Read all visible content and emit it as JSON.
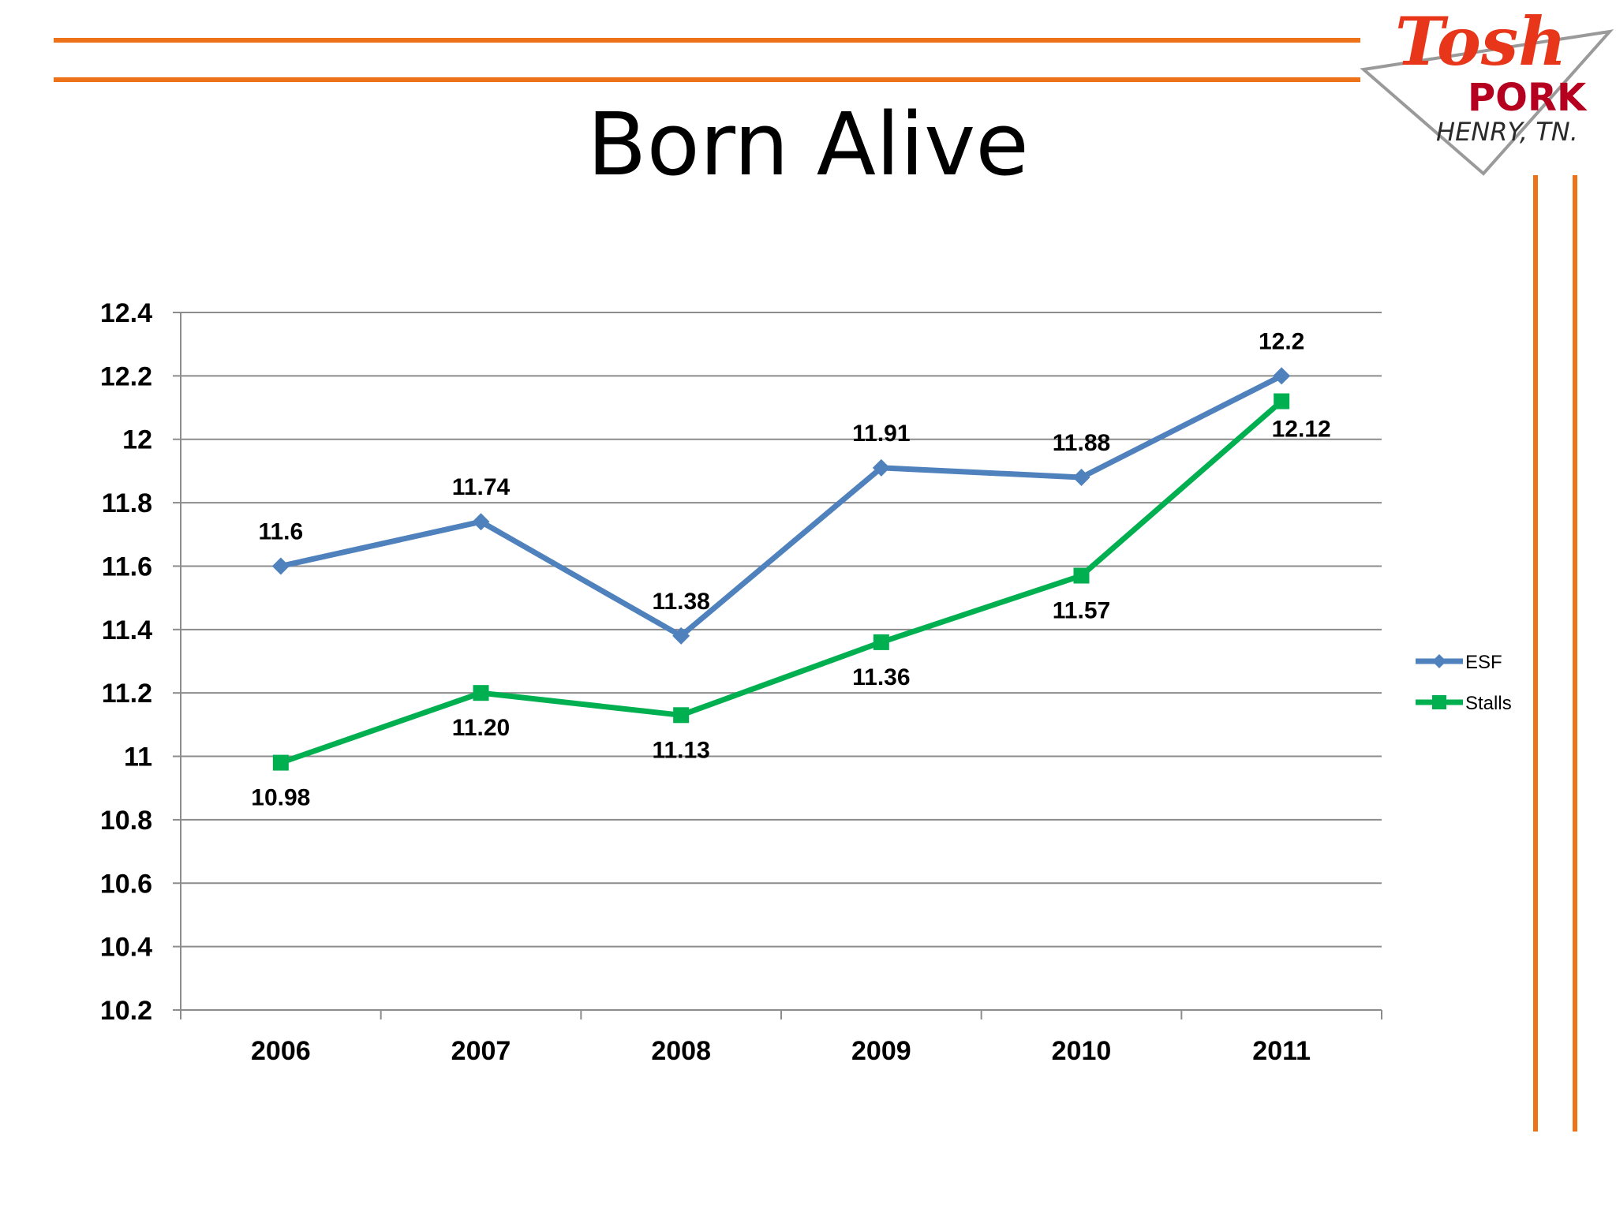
{
  "slide": {
    "title": "Born Alive",
    "accent_color": "#ee7318"
  },
  "logo": {
    "text_top": "Tosh",
    "text_mid": "PORK",
    "text_bottom": "HENRY, TN.",
    "colors": {
      "tosh": "#e8361a",
      "pork": "#b5001f",
      "henry": "#2a2a2a"
    }
  },
  "chart_data": {
    "type": "line",
    "categories": [
      "2006",
      "2007",
      "2008",
      "2009",
      "2010",
      "2011"
    ],
    "series": [
      {
        "name": "ESF",
        "values": [
          11.6,
          11.74,
          11.38,
          11.91,
          11.88,
          12.2
        ],
        "labels": [
          "11.6",
          "11.74",
          "11.38",
          "11.91",
          "11.88",
          "12.2"
        ],
        "color": "#4f81bd",
        "marker": "diamond"
      },
      {
        "name": "Stalls",
        "values": [
          10.98,
          11.2,
          11.13,
          11.36,
          11.57,
          12.12
        ],
        "labels": [
          "10.98",
          "11.20",
          "11.13",
          "11.36",
          "11.57",
          "12.12"
        ],
        "color": "#00b050",
        "marker": "square"
      }
    ],
    "ylim": [
      10.2,
      12.4
    ],
    "yticks": [
      10.2,
      10.4,
      10.6,
      10.8,
      11,
      11.2,
      11.4,
      11.6,
      11.8,
      12,
      12.2,
      12.4
    ],
    "ytick_labels": [
      "10.2",
      "10.4",
      "10.6",
      "10.8",
      "11",
      "11.2",
      "11.4",
      "11.6",
      "11.8",
      "12",
      "12.2",
      "12.4"
    ],
    "grid": true,
    "legend": "right"
  }
}
